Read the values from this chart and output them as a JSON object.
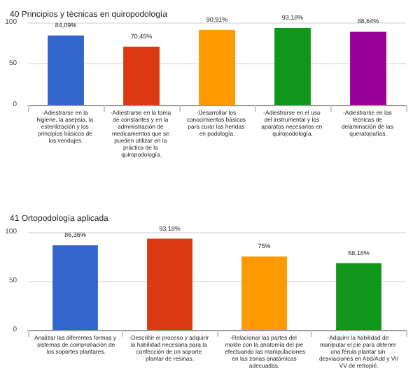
{
  "chart_data": [
    {
      "type": "bar",
      "title": "40 Principios y técnicas en quiropodología",
      "categories": [
        "-Adiestrarse en la higiene, la asepsia, la esterilización y los principios básicos de los vendajes.",
        "-Adiestrarse en la toma de constantes y en la administración de medicamentos que se pueden utilizar en la práctica de la quiropodología.",
        "-Desarrollar los conocimientos básicos para curar las heridas en podología.",
        "-Adiestrarse en el uso del instrumental y los aparatos necesarios en quiropodología.",
        "-Adiestrarse en las técnicas de delaminación de las queratopatías."
      ],
      "values": [
        84.09,
        70.45,
        90.91,
        93.18,
        88.64
      ],
      "value_labels": [
        "84,09%",
        "70,45%",
        "90,91%",
        "93,18%",
        "88,64%"
      ],
      "colors": [
        "#3366cc",
        "#dc3912",
        "#ff9900",
        "#109618",
        "#990099"
      ],
      "ylim": [
        0,
        100
      ],
      "yticks": [
        0,
        50,
        100
      ],
      "grid": "y"
    },
    {
      "type": "bar",
      "title": "41 Ortopodología aplicada",
      "categories": [
        "Analizar las diferentes formas y sistemas de comprobación de los soportes plantares.",
        "-Describir el proceso y adquirir la habilidad necesaria para la confección de un soporte plantar de resinas.",
        "-Relacionar las partes del molde con la anatomía del pie efectuando las manipulaciones en las zonas anatómicas adecuadas.",
        "-Adquirir la habilidad de manipular el pie para obtener una férula plantar sin desviaciones en Abd/Add y VI/VV de retropié."
      ],
      "values": [
        86.36,
        93.18,
        75,
        68.18
      ],
      "value_labels": [
        "86,36%",
        "93,18%",
        "75%",
        "68,18%"
      ],
      "colors": [
        "#3366cc",
        "#dc3912",
        "#ff9900",
        "#109618"
      ],
      "ylim": [
        0,
        100
      ],
      "yticks": [
        0,
        50,
        100
      ],
      "grid": "y"
    }
  ]
}
